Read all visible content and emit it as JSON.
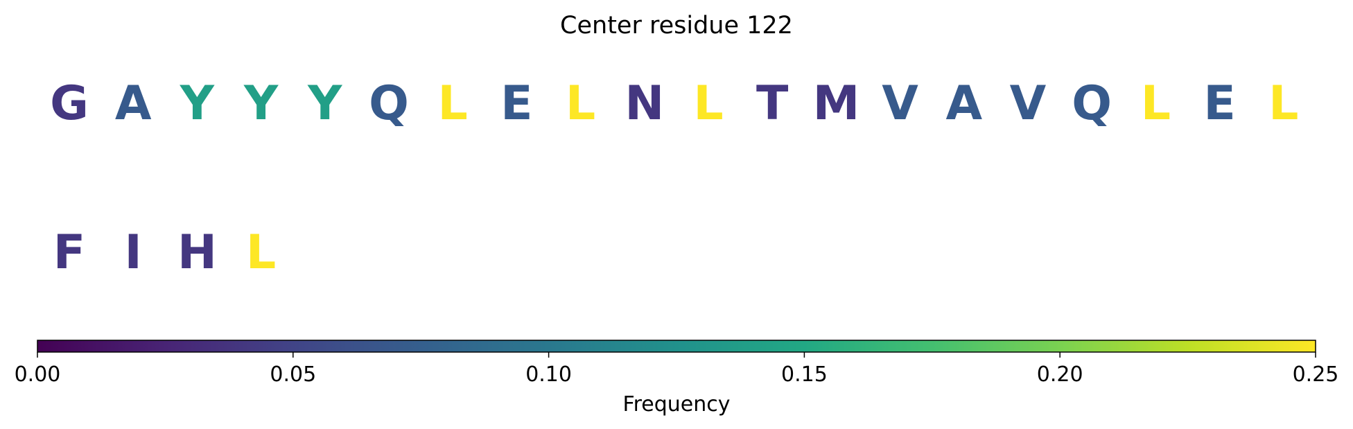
{
  "chart_data": {
    "type": "heatmap",
    "title": "Center residue 122",
    "residues": [
      {
        "letter": "G",
        "frequency": 0.04
      },
      {
        "letter": "A",
        "frequency": 0.07
      },
      {
        "letter": "Y",
        "frequency": 0.14
      },
      {
        "letter": "Y",
        "frequency": 0.14
      },
      {
        "letter": "Y",
        "frequency": 0.14
      },
      {
        "letter": "Q",
        "frequency": 0.07
      },
      {
        "letter": "L",
        "frequency": 0.25
      },
      {
        "letter": "E",
        "frequency": 0.07
      },
      {
        "letter": "L",
        "frequency": 0.25
      },
      {
        "letter": "N",
        "frequency": 0.04
      },
      {
        "letter": "L",
        "frequency": 0.25
      },
      {
        "letter": "T",
        "frequency": 0.04
      },
      {
        "letter": "M",
        "frequency": 0.04
      },
      {
        "letter": "V",
        "frequency": 0.07
      },
      {
        "letter": "A",
        "frequency": 0.07
      },
      {
        "letter": "V",
        "frequency": 0.07
      },
      {
        "letter": "Q",
        "frequency": 0.07
      },
      {
        "letter": "L",
        "frequency": 0.25
      },
      {
        "letter": "E",
        "frequency": 0.07
      },
      {
        "letter": "L",
        "frequency": 0.25
      },
      {
        "letter": "F",
        "frequency": 0.04
      },
      {
        "letter": "I",
        "frequency": 0.04
      },
      {
        "letter": "H",
        "frequency": 0.04
      },
      {
        "letter": "L",
        "frequency": 0.25
      }
    ],
    "colorbar": {
      "label": "Frequency",
      "range": [
        0,
        0.25
      ],
      "ticks": [
        "0.00",
        "0.05",
        "0.10",
        "0.15",
        "0.20",
        "0.25"
      ],
      "colormap": "viridis"
    }
  }
}
